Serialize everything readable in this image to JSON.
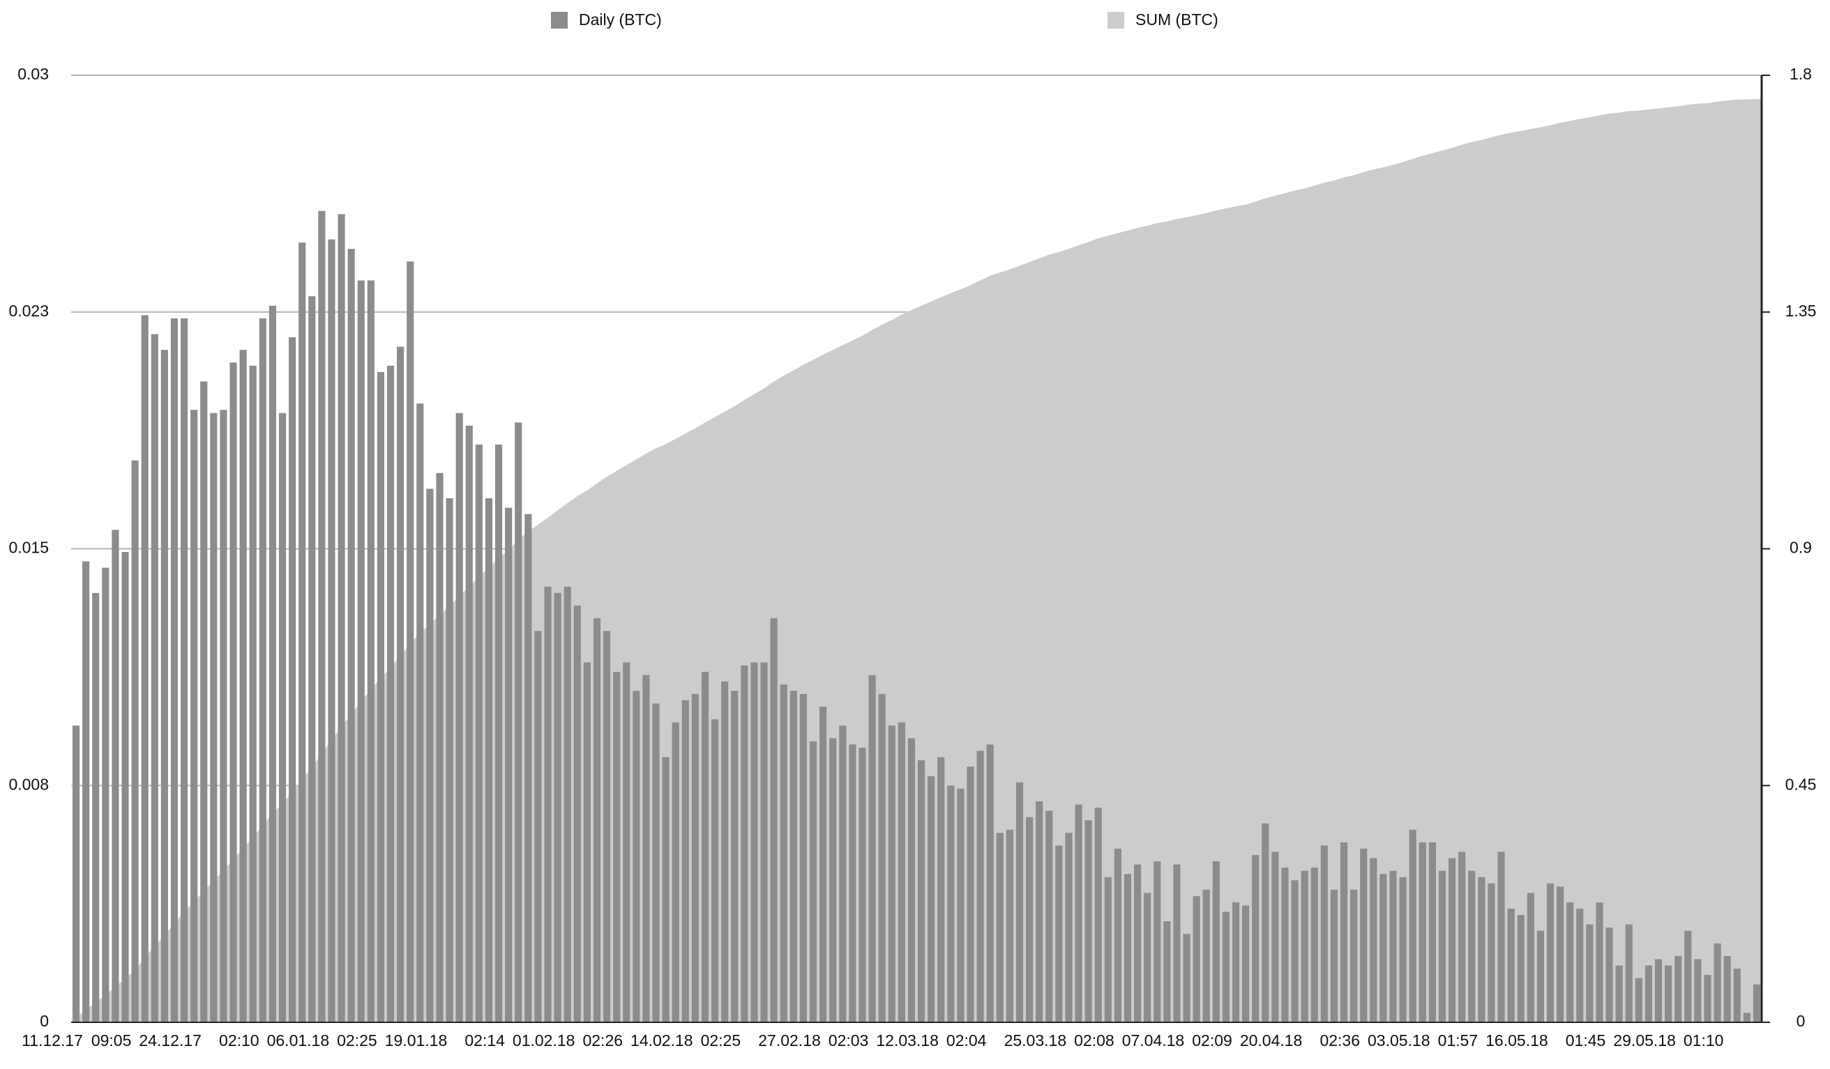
{
  "chart_data": {
    "type": "bar-area",
    "categories": [
      "11.12.17",
      null,
      null,
      null,
      null,
      null,
      "09:05",
      null,
      null,
      null,
      null,
      null,
      "24.12.17",
      null,
      null,
      null,
      null,
      null,
      null,
      "02:10",
      null,
      null,
      null,
      null,
      null,
      "06.01.18",
      null,
      null,
      null,
      null,
      null,
      "02:25",
      null,
      null,
      null,
      null,
      null,
      "19.01.18",
      null,
      null,
      null,
      null,
      null,
      null,
      "02:14",
      null,
      null,
      null,
      null,
      null,
      "01.02.18",
      null,
      null,
      null,
      null,
      null,
      "02:26",
      null,
      null,
      null,
      null,
      null,
      "14.02.18",
      null,
      null,
      null,
      null,
      null,
      "02:25",
      null,
      null,
      null,
      null,
      null,
      null,
      "27.02.18",
      null,
      null,
      null,
      null,
      null,
      "02:03",
      null,
      null,
      null,
      null,
      null,
      "12.03.18",
      null,
      null,
      null,
      null,
      null,
      "02:04",
      null,
      null,
      null,
      null,
      null,
      null,
      "25.03.18",
      null,
      null,
      null,
      null,
      null,
      "02:08",
      null,
      null,
      null,
      null,
      null,
      "07.04.18",
      null,
      null,
      null,
      null,
      null,
      "02:09",
      null,
      null,
      null,
      null,
      null,
      "20.04.18",
      null,
      null,
      null,
      null,
      null,
      null,
      "02:36",
      null,
      null,
      null,
      null,
      null,
      "03.05.18",
      null,
      null,
      null,
      null,
      null,
      "01:57",
      null,
      null,
      null,
      null,
      null,
      "16.05.18",
      null,
      null,
      null,
      null,
      null,
      null,
      "01:45",
      null,
      null,
      null,
      null,
      null,
      "29.05.18",
      null,
      null,
      null,
      null,
      null,
      "01:10",
      null,
      null,
      null
    ],
    "series": [
      {
        "name": "Daily (BTC)",
        "color": "#8c8c8c",
        "kind": "bar",
        "values": [
          0.0094,
          0.0146,
          0.0136,
          0.0144,
          0.0156,
          0.0149,
          0.0178,
          0.0224,
          0.0218,
          0.0213,
          0.0223,
          0.0223,
          0.0194,
          0.0203,
          0.0193,
          0.0194,
          0.0209,
          0.0213,
          0.0208,
          0.0223,
          0.0227,
          0.0193,
          0.0217,
          0.0247,
          0.023,
          0.0257,
          0.0248,
          0.0256,
          0.0245,
          0.0235,
          0.0235,
          0.0206,
          0.0208,
          0.0214,
          0.0241,
          0.0196,
          0.0169,
          0.0174,
          0.0166,
          0.0193,
          0.0189,
          0.0183,
          0.0166,
          0.0183,
          0.0163,
          0.019,
          0.0161,
          0.0124,
          0.0138,
          0.0136,
          0.0138,
          0.0132,
          0.0114,
          0.0128,
          0.0124,
          0.0111,
          0.0114,
          0.0105,
          0.011,
          0.0101,
          0.0084,
          0.0095,
          0.0102,
          0.0104,
          0.0111,
          0.0096,
          0.0108,
          0.0105,
          0.0113,
          0.0114,
          0.0114,
          0.0128,
          0.0107,
          0.0105,
          0.0104,
          0.0089,
          0.01,
          0.009,
          0.0094,
          0.0088,
          0.0087,
          0.011,
          0.0104,
          0.0094,
          0.0095,
          0.009,
          0.0083,
          0.0078,
          0.0084,
          0.0075,
          0.0074,
          0.0081,
          0.0086,
          0.0088,
          0.006,
          0.0061,
          0.0076,
          0.0065,
          0.007,
          0.0067,
          0.0056,
          0.006,
          0.0069,
          0.0064,
          0.0068,
          0.0046,
          0.0055,
          0.0047,
          0.005,
          0.0041,
          0.0051,
          0.0032,
          0.005,
          0.0028,
          0.004,
          0.0042,
          0.0051,
          0.0035,
          0.0038,
          0.0037,
          0.0053,
          0.0063,
          0.0054,
          0.0049,
          0.0045,
          0.0048,
          0.0049,
          0.0056,
          0.0042,
          0.0057,
          0.0042,
          0.0055,
          0.0052,
          0.0047,
          0.0048,
          0.0046,
          0.0061,
          0.0057,
          0.0057,
          0.0048,
          0.0052,
          0.0054,
          0.0048,
          0.0046,
          0.0044,
          0.0054,
          0.0036,
          0.0034,
          0.0041,
          0.0029,
          0.0044,
          0.0043,
          0.0038,
          0.0036,
          0.0031,
          0.0038,
          0.003,
          0.0018,
          0.0031,
          0.0014,
          0.0018,
          0.002,
          0.0018,
          0.0021,
          0.0029,
          0.002,
          0.0015,
          0.0025,
          0.0021,
          0.0017,
          0.0003,
          0.0012
        ]
      },
      {
        "name": "SUM (BTC)",
        "color": "#cccccc",
        "kind": "area",
        "axis": "y2",
        "values": [
          0.009,
          0.024,
          0.038,
          0.052,
          0.068,
          0.083,
          0.1,
          0.123,
          0.145,
          0.166,
          0.188,
          0.21,
          0.23,
          0.25,
          0.269,
          0.289,
          0.31,
          0.331,
          0.352,
          0.374,
          0.397,
          0.416,
          0.438,
          0.462,
          0.485,
          0.511,
          0.536,
          0.562,
          0.586,
          0.61,
          0.633,
          0.654,
          0.675,
          0.696,
          0.72,
          0.74,
          0.757,
          0.774,
          0.791,
          0.81,
          0.829,
          0.847,
          0.864,
          0.882,
          0.898,
          0.917,
          0.933,
          0.946,
          0.959,
          0.973,
          0.987,
          1.0,
          1.011,
          1.024,
          1.037,
          1.048,
          1.059,
          1.07,
          1.081,
          1.091,
          1.099,
          1.109,
          1.119,
          1.129,
          1.14,
          1.15,
          1.161,
          1.171,
          1.183,
          1.194,
          1.205,
          1.218,
          1.229,
          1.239,
          1.25,
          1.259,
          1.269,
          1.278,
          1.287,
          1.296,
          1.305,
          1.316,
          1.326,
          1.335,
          1.345,
          1.354,
          1.362,
          1.37,
          1.378,
          1.386,
          1.393,
          1.401,
          1.41,
          1.419,
          1.425,
          1.431,
          1.438,
          1.445,
          1.452,
          1.459,
          1.464,
          1.47,
          1.477,
          1.483,
          1.49,
          1.495,
          1.5,
          1.505,
          1.51,
          1.514,
          1.519,
          1.522,
          1.527,
          1.53,
          1.534,
          1.538,
          1.543,
          1.547,
          1.551,
          1.554,
          1.56,
          1.566,
          1.571,
          1.576,
          1.581,
          1.585,
          1.59,
          1.596,
          1.6,
          1.606,
          1.61,
          1.616,
          1.621,
          1.625,
          1.63,
          1.635,
          1.641,
          1.647,
          1.652,
          1.657,
          1.662,
          1.668,
          1.673,
          1.677,
          1.682,
          1.687,
          1.691,
          1.694,
          1.698,
          1.701,
          1.705,
          1.71,
          1.713,
          1.717,
          1.72,
          1.724,
          1.727,
          1.729,
          1.732,
          1.733,
          1.735,
          1.737,
          1.739,
          1.741,
          1.744,
          1.746,
          1.747,
          1.75,
          1.752,
          1.754,
          1.754,
          1.755
        ]
      }
    ],
    "ylim": [
      0,
      0.03
    ],
    "yticks": [
      0,
      {
        "value": 0.0075,
        "label": "0.008"
      },
      0.015,
      {
        "value": 0.0225,
        "label": "0.023"
      },
      0.03
    ],
    "y2lim": [
      0,
      1.8
    ],
    "y2ticks": [
      0,
      0.45,
      0.9,
      1.35,
      1.8
    ],
    "grid": true,
    "legend": "top"
  }
}
